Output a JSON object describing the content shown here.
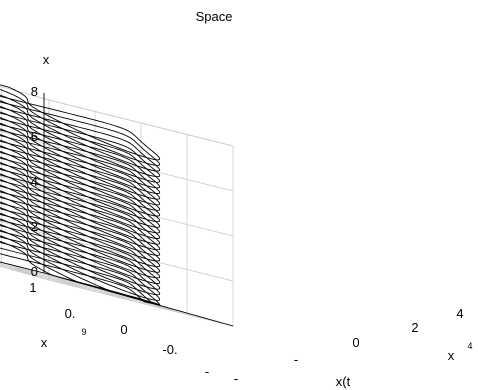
{
  "chart_data": {
    "type": "line",
    "title": "Space",
    "zlabel": "x",
    "xlabel": "x(t",
    "ylabel": "x",
    "xlabel_superscript": "4",
    "ylabel_superscript": "9",
    "z_ticks": [
      "0",
      "2",
      "4",
      "6",
      "8"
    ],
    "x_ticks": [
      "-",
      "-",
      "0",
      "2",
      "4"
    ],
    "y_ticks": [
      "-",
      "-0.",
      "0",
      "0.",
      "1"
    ],
    "zlim": [
      0,
      8
    ],
    "xlim": [
      -4,
      4
    ],
    "ylim": [
      -1,
      1
    ],
    "grid": true,
    "series_count": 29,
    "layer_step": 0.25
  },
  "colors": {
    "curve": "#000000",
    "grid": "#c8c8c8",
    "axis": "#000000"
  }
}
